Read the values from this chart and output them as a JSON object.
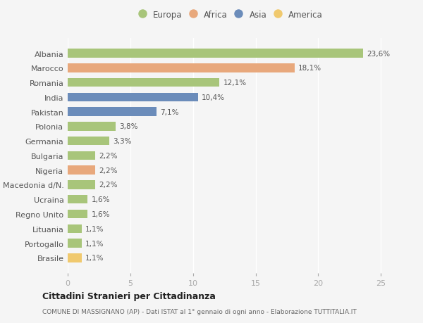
{
  "categories": [
    "Albania",
    "Marocco",
    "Romania",
    "India",
    "Pakistan",
    "Polonia",
    "Germania",
    "Bulgaria",
    "Nigeria",
    "Macedonia d/N.",
    "Ucraina",
    "Regno Unito",
    "Lituania",
    "Portogallo",
    "Brasile"
  ],
  "values": [
    23.6,
    18.1,
    12.1,
    10.4,
    7.1,
    3.8,
    3.3,
    2.2,
    2.2,
    2.2,
    1.6,
    1.6,
    1.1,
    1.1,
    1.1
  ],
  "labels": [
    "23,6%",
    "18,1%",
    "12,1%",
    "10,4%",
    "7,1%",
    "3,8%",
    "3,3%",
    "2,2%",
    "2,2%",
    "2,2%",
    "1,6%",
    "1,6%",
    "1,1%",
    "1,1%",
    "1,1%"
  ],
  "continents": [
    "Europa",
    "Africa",
    "Europa",
    "Asia",
    "Asia",
    "Europa",
    "Europa",
    "Europa",
    "Africa",
    "Europa",
    "Europa",
    "Europa",
    "Europa",
    "Europa",
    "America"
  ],
  "colors": {
    "Europa": "#a8c57a",
    "Africa": "#e8a87c",
    "Asia": "#6b8cba",
    "America": "#f0c96e"
  },
  "legend_labels": [
    "Europa",
    "Africa",
    "Asia",
    "America"
  ],
  "background_color": "#f5f5f5",
  "xlim": [
    0,
    26
  ],
  "xticks": [
    0,
    5,
    10,
    15,
    20,
    25
  ],
  "title": "Cittadini Stranieri per Cittadinanza",
  "subtitle": "COMUNE DI MASSIGNANO (AP) - Dati ISTAT al 1° gennaio di ogni anno - Elaborazione TUTTITALIA.IT"
}
